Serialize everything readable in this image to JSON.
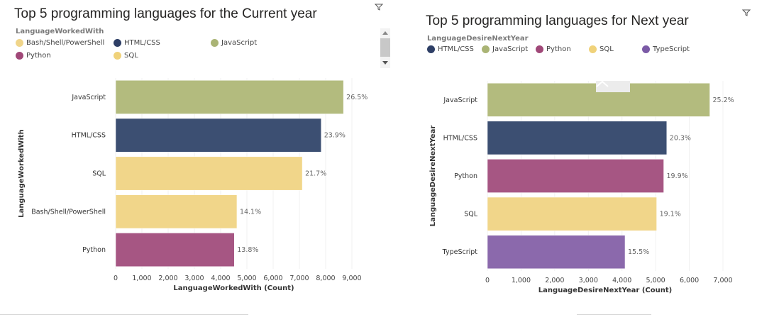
{
  "chart_data": [
    {
      "type": "bar",
      "orientation": "horizontal",
      "title": "Top 5 programming languages for the Current year",
      "legend_title": "LanguageWorkedWith",
      "legend": [
        {
          "name": "Bash/Shell/PowerShell",
          "color": "#f0d58a"
        },
        {
          "name": "HTML/CSS",
          "color": "#2e3f66"
        },
        {
          "name": "JavaScript",
          "color": "#aab475"
        },
        {
          "name": "Python",
          "color": "#a04878"
        },
        {
          "name": "SQL",
          "color": "#f0d27a"
        }
      ],
      "categories": [
        "JavaScript",
        "HTML/CSS",
        "SQL",
        "Bash/Shell/PowerShell",
        "Python"
      ],
      "values": [
        8680,
        7830,
        7110,
        4620,
        4520
      ],
      "labels": [
        "26.5%",
        "23.9%",
        "21.7%",
        "14.1%",
        "13.8%"
      ],
      "colors": [
        "#b3bb7e",
        "#3c4f72",
        "#f1d68a",
        "#f1d68a",
        "#a65683"
      ],
      "xlabel": "LanguageWorkedWith (Count)",
      "ylabel": "LanguageWorkedWith",
      "xlim": [
        0,
        9000
      ],
      "xticks": [
        0,
        1000,
        2000,
        3000,
        4000,
        5000,
        6000,
        7000,
        8000,
        9000
      ],
      "xtick_labels": [
        "0",
        "1,000",
        "2,000",
        "3,000",
        "4,000",
        "5,000",
        "6,000",
        "7,000",
        "8,000",
        "9,000"
      ]
    },
    {
      "type": "bar",
      "orientation": "horizontal",
      "title": "Top 5 programming languages for Next year",
      "legend_title": "LanguageDesireNextYear",
      "legend": [
        {
          "name": "HTML/CSS",
          "color": "#2e3f66"
        },
        {
          "name": "JavaScript",
          "color": "#aab475"
        },
        {
          "name": "Python",
          "color": "#a04878"
        },
        {
          "name": "SQL",
          "color": "#f0d27a"
        },
        {
          "name": "TypeScript",
          "color": "#7b5aa6"
        }
      ],
      "categories": [
        "JavaScript",
        "HTML/CSS",
        "Python",
        "SQL",
        "TypeScript"
      ],
      "values": [
        6610,
        5330,
        5240,
        5030,
        4090
      ],
      "labels": [
        "25.2%",
        "20.3%",
        "19.9%",
        "19.1%",
        "15.5%"
      ],
      "colors": [
        "#b3bb7e",
        "#3c4f72",
        "#a65683",
        "#f1d68a",
        "#8b69ac"
      ],
      "xlabel": "LanguageDesireNextYear (Count)",
      "ylabel": "LanguageDesireNextYear",
      "xlim": [
        0,
        7000
      ],
      "xticks": [
        0,
        1000,
        2000,
        3000,
        4000,
        5000,
        6000,
        7000
      ],
      "xtick_labels": [
        "0",
        "1,000",
        "2,000",
        "3,000",
        "4,000",
        "5,000",
        "6,000",
        "7,000"
      ]
    }
  ],
  "icons": {
    "filter": "filter-icon",
    "scroll_up": "chevron-up-icon",
    "scroll_down": "chevron-down-icon",
    "collapse": "chevron-up-icon"
  }
}
